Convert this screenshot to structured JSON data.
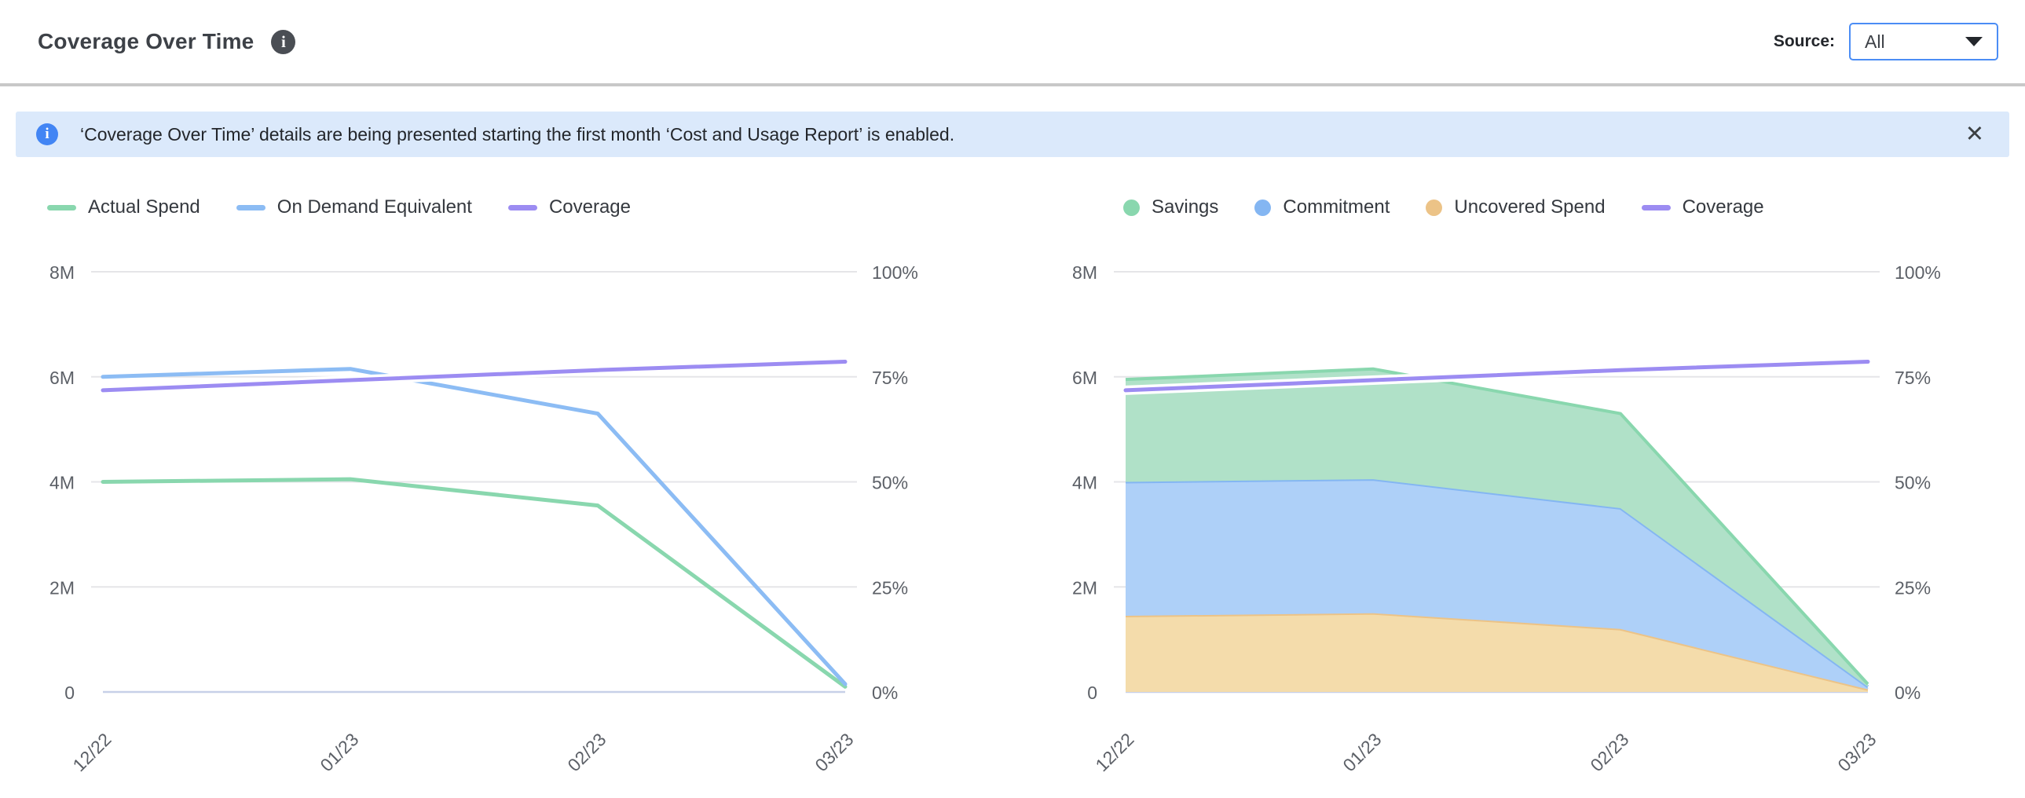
{
  "header": {
    "title": "Coverage Over Time",
    "source_label": "Source:",
    "source_value": "All"
  },
  "banner": {
    "text": "‘Coverage Over Time’ details are being presented starting the first month ‘Cost and Usage Report’ is enabled.",
    "close_glyph": "✕"
  },
  "colors": {
    "accent_blue": "#4b8df5",
    "banner_bg": "#dbe9fb",
    "grid": "#e5e5e8",
    "baseline": "#c7d0e8",
    "axis_text": "#5c6067"
  },
  "chart_data": [
    {
      "type": "line",
      "title": "Coverage Over Time - spend lines",
      "x": [
        "12/22",
        "01/23",
        "02/23",
        "03/23"
      ],
      "y_left_labels": [
        "8M",
        "6M",
        "4M",
        "2M",
        "0"
      ],
      "y_right_labels": [
        "100%",
        "75%",
        "50%",
        "25%",
        "0%"
      ],
      "y_left_max": 8,
      "y_right_max": 100,
      "units": "millions",
      "legend_position": "top-left",
      "grid": true,
      "series": [
        {
          "name": "Actual Spend",
          "kind": "line",
          "axis": "M",
          "color": "#89d7ae",
          "values": [
            4.0,
            4.05,
            3.55,
            0.1
          ]
        },
        {
          "name": "On Demand Equivalent",
          "kind": "line",
          "axis": "M",
          "color": "#8cbcf4",
          "values": [
            6.0,
            6.15,
            5.3,
            0.15
          ]
        },
        {
          "name": "Coverage",
          "kind": "line",
          "axis": "pct",
          "color": "#9c8cf2",
          "halo": "#ffffff",
          "values": [
            71.8,
            74.2,
            76.6,
            78.6
          ]
        }
      ]
    },
    {
      "type": "area",
      "stacked": true,
      "title": "Coverage Over Time - stacked spend breakdown",
      "x": [
        "12/22",
        "01/23",
        "02/23",
        "03/23"
      ],
      "y_left_labels": [
        "8M",
        "6M",
        "4M",
        "2M",
        "0"
      ],
      "y_right_labels": [
        "100%",
        "75%",
        "50%",
        "25%",
        "0%"
      ],
      "y_left_max": 8,
      "y_right_max": 100,
      "units": "millions",
      "legend_position": "top-left",
      "grid": true,
      "series": [
        {
          "name": "Uncovered Spend",
          "kind": "area",
          "axis": "M",
          "color": "#ecc387",
          "fill": "#f4dcab",
          "values": [
            1.45,
            1.5,
            1.2,
            0.05
          ]
        },
        {
          "name": "Commitment",
          "kind": "area",
          "axis": "M",
          "color": "#84b6f2",
          "fill": "#aed0f8",
          "values": [
            2.55,
            2.55,
            2.3,
            0.05
          ]
        },
        {
          "name": "Savings",
          "kind": "area",
          "axis": "M",
          "color": "#89d7ae",
          "fill": "#b0e1c8",
          "values": [
            1.95,
            2.1,
            1.8,
            0.05
          ]
        },
        {
          "name": "Coverage",
          "kind": "line",
          "axis": "pct",
          "color": "#9c8cf2",
          "halo": "#ffffff",
          "values": [
            71.8,
            74.2,
            76.6,
            78.6
          ]
        }
      ]
    }
  ]
}
